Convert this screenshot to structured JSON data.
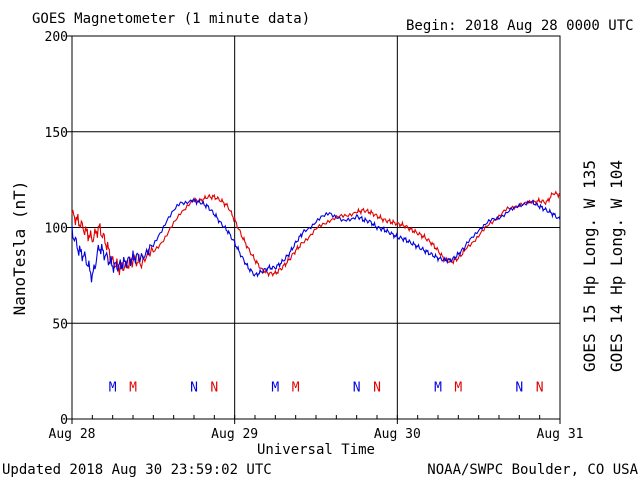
{
  "header": {
    "title": "GOES Magnetometer (1 minute data)",
    "begin": "Begin:  2018 Aug 28 0000 UTC"
  },
  "footer": {
    "updated": "Updated 2018 Aug 30 23:59:02 UTC",
    "credit": "NOAA/SWPC Boulder, CO USA"
  },
  "colors": {
    "goes15": "#e00000",
    "goes14": "#0000e0",
    "frame": "#000000"
  },
  "chart_data": {
    "type": "line",
    "title": "GOES Magnetometer (1 minute data)",
    "xlabel": "Universal Time",
    "ylabel": "NanoTesla (nT)",
    "xlim": [
      0,
      72
    ],
    "x_unit": "hours since 2018 Aug 28 0000 UTC",
    "ylim": [
      0,
      200
    ],
    "yticks": [
      0,
      50,
      100,
      150,
      200
    ],
    "ytick_labels": [
      "0",
      "50",
      "100",
      "150",
      "200"
    ],
    "xticks": [
      0,
      24,
      48,
      72
    ],
    "xtick_labels": [
      "Aug 28",
      "Aug 29",
      "Aug 30",
      "Aug 31"
    ],
    "grid": true,
    "legend": [
      {
        "name": "GOES 15 Hp  Long. W 135",
        "color": "#e00000",
        "placement": "right"
      },
      {
        "name": "GOES 14 Hp  Long. W 104",
        "color": "#0000e0",
        "placement": "right"
      }
    ],
    "series": [
      {
        "name": "GOES 15 Hp  Long. W 135",
        "color": "#e00000",
        "x": [
          0,
          1,
          2,
          3,
          4,
          5,
          6,
          7,
          8,
          9,
          10,
          12,
          14,
          16,
          18,
          19,
          20,
          21,
          22,
          23,
          24,
          25,
          26,
          27,
          28,
          29,
          30,
          31,
          32,
          33,
          34,
          36,
          38,
          40,
          42,
          43,
          44,
          45,
          46,
          47,
          48,
          49,
          50,
          51,
          52,
          53,
          54,
          55,
          56,
          57,
          58,
          60,
          62,
          64,
          66,
          68,
          69,
          70,
          71,
          72
        ],
        "y": [
          107,
          103,
          98,
          94,
          100,
          92,
          82,
          79,
          80,
          83,
          82,
          87,
          96,
          108,
          114,
          114,
          116,
          116,
          114,
          111,
          104,
          96,
          89,
          83,
          78,
          76,
          76,
          79,
          83,
          88,
          92,
          99,
          104,
          106,
          108,
          109,
          108,
          106,
          104,
          103,
          102,
          101,
          99,
          97,
          95,
          92,
          88,
          83,
          82,
          84,
          88,
          96,
          103,
          109,
          112,
          113,
          114,
          113,
          118,
          117
        ]
      },
      {
        "name": "GOES 14 Hp  Long. W 104",
        "color": "#0000e0",
        "x": [
          0,
          1,
          2,
          3,
          4,
          5,
          6,
          7,
          8,
          9,
          10,
          12,
          14,
          16,
          18,
          19,
          20,
          21,
          22,
          23,
          24,
          25,
          26,
          27,
          28,
          29,
          30,
          31,
          32,
          33,
          34,
          36,
          38,
          40,
          42,
          43,
          44,
          45,
          46,
          47,
          48,
          49,
          50,
          51,
          52,
          53,
          54,
          55,
          56,
          57,
          58,
          60,
          62,
          64,
          66,
          68,
          69,
          70,
          71,
          72
        ],
        "y": [
          98,
          88,
          84,
          74,
          90,
          85,
          80,
          80,
          82,
          84,
          85,
          90,
          104,
          113,
          114,
          113,
          111,
          107,
          102,
          98,
          92,
          85,
          79,
          75,
          77,
          79,
          79,
          82,
          86,
          92,
          97,
          103,
          108,
          103,
          106,
          104,
          103,
          100,
          99,
          97,
          95,
          94,
          92,
          90,
          88,
          86,
          84,
          83,
          83,
          86,
          90,
          99,
          104,
          107,
          112,
          113,
          111,
          109,
          107,
          104
        ]
      }
    ],
    "markers": [
      {
        "label": "M",
        "x": 6,
        "color": "#0000e0"
      },
      {
        "label": "M",
        "x": 9,
        "color": "#e00000"
      },
      {
        "label": "N",
        "x": 18,
        "color": "#0000e0"
      },
      {
        "label": "N",
        "x": 21,
        "color": "#e00000"
      },
      {
        "label": "M",
        "x": 30,
        "color": "#0000e0"
      },
      {
        "label": "M",
        "x": 33,
        "color": "#e00000"
      },
      {
        "label": "N",
        "x": 42,
        "color": "#0000e0"
      },
      {
        "label": "N",
        "x": 45,
        "color": "#e00000"
      },
      {
        "label": "M",
        "x": 54,
        "color": "#0000e0"
      },
      {
        "label": "M",
        "x": 57,
        "color": "#e00000"
      },
      {
        "label": "N",
        "x": 66,
        "color": "#0000e0"
      },
      {
        "label": "N",
        "x": 69,
        "color": "#e00000"
      }
    ],
    "marker_level": 17
  }
}
